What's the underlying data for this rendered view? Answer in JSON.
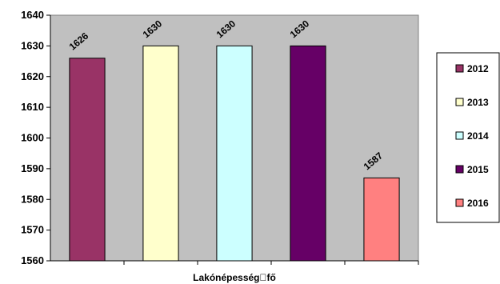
{
  "chart_data": {
    "type": "bar",
    "title": "",
    "xlabel": "Lakónépesség\u0000fő",
    "ylabel": "",
    "ylim": [
      1560,
      1640
    ],
    "yticks": [
      1560,
      1570,
      1580,
      1590,
      1600,
      1610,
      1620,
      1630,
      1640
    ],
    "grid": false,
    "legend_position": "right",
    "series": [
      {
        "name": "2012",
        "value": 1626,
        "color": "#993366"
      },
      {
        "name": "2013",
        "value": 1630,
        "color": "#FFFFCC"
      },
      {
        "name": "2014",
        "value": 1630,
        "color": "#CCFFFF"
      },
      {
        "name": "2015",
        "value": 1630,
        "color": "#660066"
      },
      {
        "name": "2016",
        "value": 1587,
        "color": "#FF8080"
      }
    ],
    "plot_background": "#C0C0C0"
  }
}
